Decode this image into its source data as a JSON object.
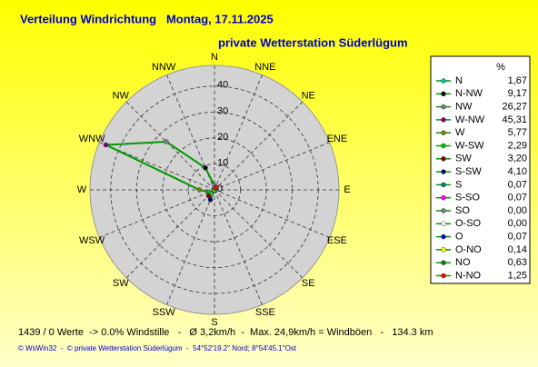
{
  "chart_data": {
    "type": "polar",
    "title": "Verteilung Windrichtung   Montag, 17.11.2025",
    "subtitle": "private Wetterstation Süderlügum",
    "direction_labels": [
      "N",
      "NNE",
      "NE",
      "ENE",
      "E",
      "ESE",
      "SE",
      "SSE",
      "S",
      "SSW",
      "SW",
      "WSW",
      "W",
      "WNW",
      "NW",
      "NNW"
    ],
    "rlim": [
      0,
      48
    ],
    "rticks": [
      0,
      10,
      20,
      30,
      40
    ],
    "legend_header": "%",
    "line_color": "#009900",
    "categories": [
      "N",
      "N-NW",
      "NW",
      "W-NW",
      "W",
      "W-SW",
      "SW",
      "S-SW",
      "S",
      "S-SO",
      "SO",
      "O-SO",
      "O",
      "O-NO",
      "NO",
      "N-NO"
    ],
    "values": [
      1.67,
      9.17,
      26.27,
      45.31,
      5.77,
      2.29,
      3.2,
      4.1,
      0.07,
      0.07,
      0.0,
      0.0,
      0.07,
      0.14,
      0.63,
      1.25
    ],
    "value_labels": [
      "1,67",
      "9,17",
      "26,27",
      "45,31",
      "5,77",
      "2,29",
      "3,20",
      "4,10",
      "0,07",
      "0,07",
      "0,00",
      "0,00",
      "0,07",
      "0,14",
      "0,63",
      "1,25"
    ],
    "colors": [
      "#00c0c0",
      "#000000",
      "#808080",
      "#800080",
      "#808000",
      "#00c000",
      "#800000",
      "#000080",
      "#008080",
      "#ff00ff",
      "#808080",
      "#ffffff",
      "#0000ff",
      "#ffff00",
      "#008000",
      "#ff0000"
    ],
    "footer": "1439 / 0 Werte  -> 0.0% Windstille   -   Ø 3,2km/h  -  Max. 24,9km/h = Windböen   -   134.3 km",
    "copyright": "© WsWin32  -  © private Wetterstation Süderlügum  -  54°52'19.2\" Nord; 8°54'45.1\"Ost"
  }
}
